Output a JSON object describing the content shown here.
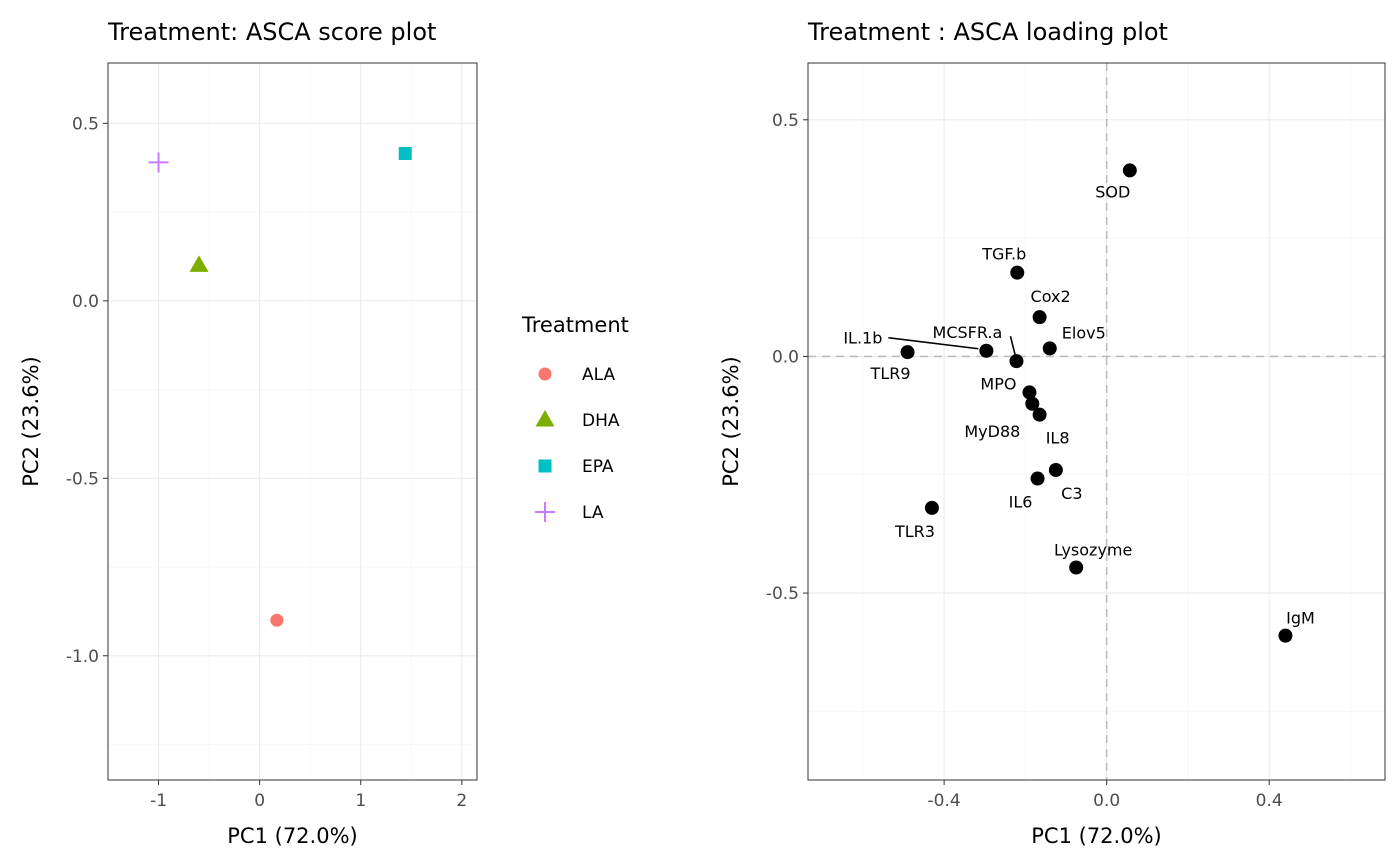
{
  "chart_data": [
    {
      "type": "scatter",
      "title": "Treatment: ASCA score plot",
      "xlabel": "PC1 (72.0%)",
      "ylabel": "PC2 (23.6%)",
      "xlim": [
        -1.5,
        2.15
      ],
      "ylim": [
        -1.35,
        0.67
      ],
      "x_ticks": [
        -1,
        0,
        1,
        2
      ],
      "x_tick_labels": [
        "-1",
        "0",
        "1",
        "2"
      ],
      "y_ticks": [
        0.5,
        0.0,
        -0.5,
        -1.0
      ],
      "y_tick_labels": [
        "0.5",
        "0.0",
        "-0.5",
        "-1.0"
      ],
      "grid": true,
      "legend": {
        "title": "Treatment",
        "placement": "right",
        "items": [
          {
            "label": "ALA",
            "color": "#F8766D",
            "shape": "circle"
          },
          {
            "label": "DHA",
            "color": "#7CAE00",
            "shape": "triangle"
          },
          {
            "label": "EPA",
            "color": "#00BFC4",
            "shape": "square"
          },
          {
            "label": "LA",
            "color": "#C77CFF",
            "shape": "plus"
          }
        ]
      },
      "points": [
        {
          "group": "ALA",
          "x": 0.17,
          "y": -0.9
        },
        {
          "group": "DHA",
          "x": -0.6,
          "y": 0.1
        },
        {
          "group": "EPA",
          "x": 1.44,
          "y": 0.415
        },
        {
          "group": "LA",
          "x": -1.0,
          "y": 0.39
        }
      ]
    },
    {
      "type": "scatter",
      "title": "Treatment : ASCA loading plot",
      "xlabel": "PC1 (72.0%)",
      "ylabel": "PC2 (23.6%)",
      "xlim": [
        -0.735,
        0.685
      ],
      "ylim": [
        -0.895,
        0.62
      ],
      "x_ticks": [
        -0.4,
        0.0,
        0.4
      ],
      "x_tick_labels": [
        "-0.4",
        "0.0",
        "0.4"
      ],
      "y_ticks": [
        0.5,
        0.0,
        -0.5
      ],
      "y_tick_labels": [
        "0.5",
        "0.0",
        "-0.5"
      ],
      "grid": true,
      "reference_lines": {
        "x": 0,
        "y": 0,
        "style": "dashed"
      },
      "point_color": "#000000",
      "points": [
        {
          "label": "SOD",
          "x": 0.057,
          "y": 0.393
        },
        {
          "label": "TGF.b",
          "x": -0.22,
          "y": 0.177
        },
        {
          "label": "Cox2",
          "x": -0.165,
          "y": 0.083
        },
        {
          "label": "Elov5",
          "x": -0.14,
          "y": 0.017
        },
        {
          "label": "IL.1b",
          "x": -0.296,
          "y": 0.012
        },
        {
          "label": "TLR9",
          "x": -0.49,
          "y": 0.009
        },
        {
          "label": "MCSFR.a",
          "x": -0.222,
          "y": -0.01
        },
        {
          "label": "MPO",
          "x": -0.19,
          "y": -0.076
        },
        {
          "label": "MyD88",
          "x": -0.183,
          "y": -0.1
        },
        {
          "label": "IL8",
          "x": -0.165,
          "y": -0.123
        },
        {
          "label": "C3",
          "x": -0.125,
          "y": -0.24
        },
        {
          "label": "IL6",
          "x": -0.17,
          "y": -0.258
        },
        {
          "label": "TLR3",
          "x": -0.43,
          "y": -0.32
        },
        {
          "label": "Lysozyme",
          "x": -0.075,
          "y": -0.446
        },
        {
          "label": "IgM",
          "x": 0.44,
          "y": -0.59
        }
      ]
    }
  ]
}
